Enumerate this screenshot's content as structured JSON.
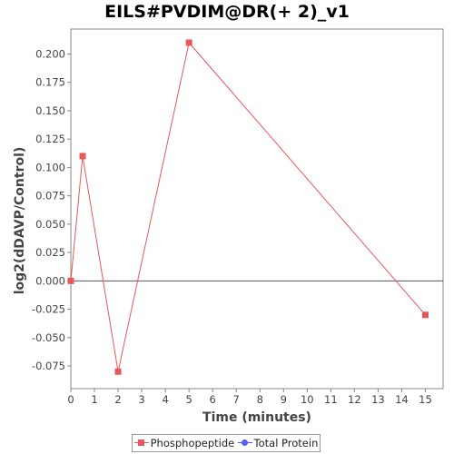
{
  "chart_data": {
    "type": "line",
    "title": "EILS#PVDIM@DR(+ 2)_v1",
    "xlabel": "Time (minutes)",
    "ylabel": "log2(dDAVP/Control)",
    "xlim": [
      0,
      15.75
    ],
    "ylim": [
      -0.095,
      0.222
    ],
    "x_ticks": [
      "0",
      "1",
      "2",
      "3",
      "4",
      "5",
      "6",
      "7",
      "8",
      "9",
      "10",
      "11",
      "12",
      "13",
      "14",
      "15"
    ],
    "y_ticks": [
      "0.200",
      "0.175",
      "0.150",
      "0.125",
      "0.100",
      "0.075",
      "0.050",
      "0.025",
      "0.000",
      "-0.025",
      "-0.050",
      "-0.075"
    ],
    "grid": false,
    "legend_position": "bottom",
    "series": [
      {
        "name": "Phosphopeptide",
        "color": "#e8585a",
        "marker": "square",
        "x": [
          0,
          0.5,
          2,
          5,
          15
        ],
        "y": [
          0.0,
          0.11,
          -0.08,
          0.21,
          -0.03
        ]
      },
      {
        "name": "Total Protein",
        "color": "#5b5bf5",
        "marker": "circle",
        "x": [],
        "y": []
      }
    ]
  }
}
